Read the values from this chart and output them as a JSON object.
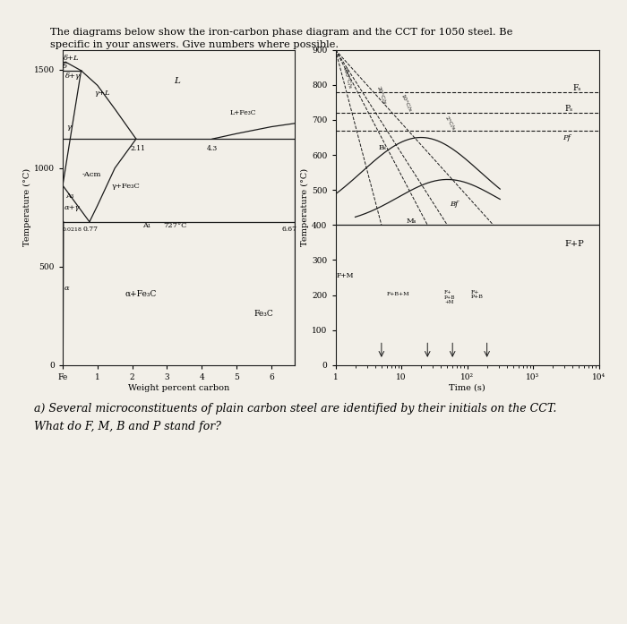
{
  "paper_color": "#f2efe8",
  "wood_color": "#a07830",
  "black_color": "#111111",
  "line_color": "#1a1a1a",
  "title_line1": "The diagrams below show the iron-carbon phase diagram and the CCT for 1050 steel. Be",
  "title_line2": "specific in your answers. Give numbers where possible.",
  "question_line1": "a) Several microconstituents of plain carbon steel are identified by their initials on the CCT.",
  "question_line2": "What do F, M, B and P stand for?"
}
